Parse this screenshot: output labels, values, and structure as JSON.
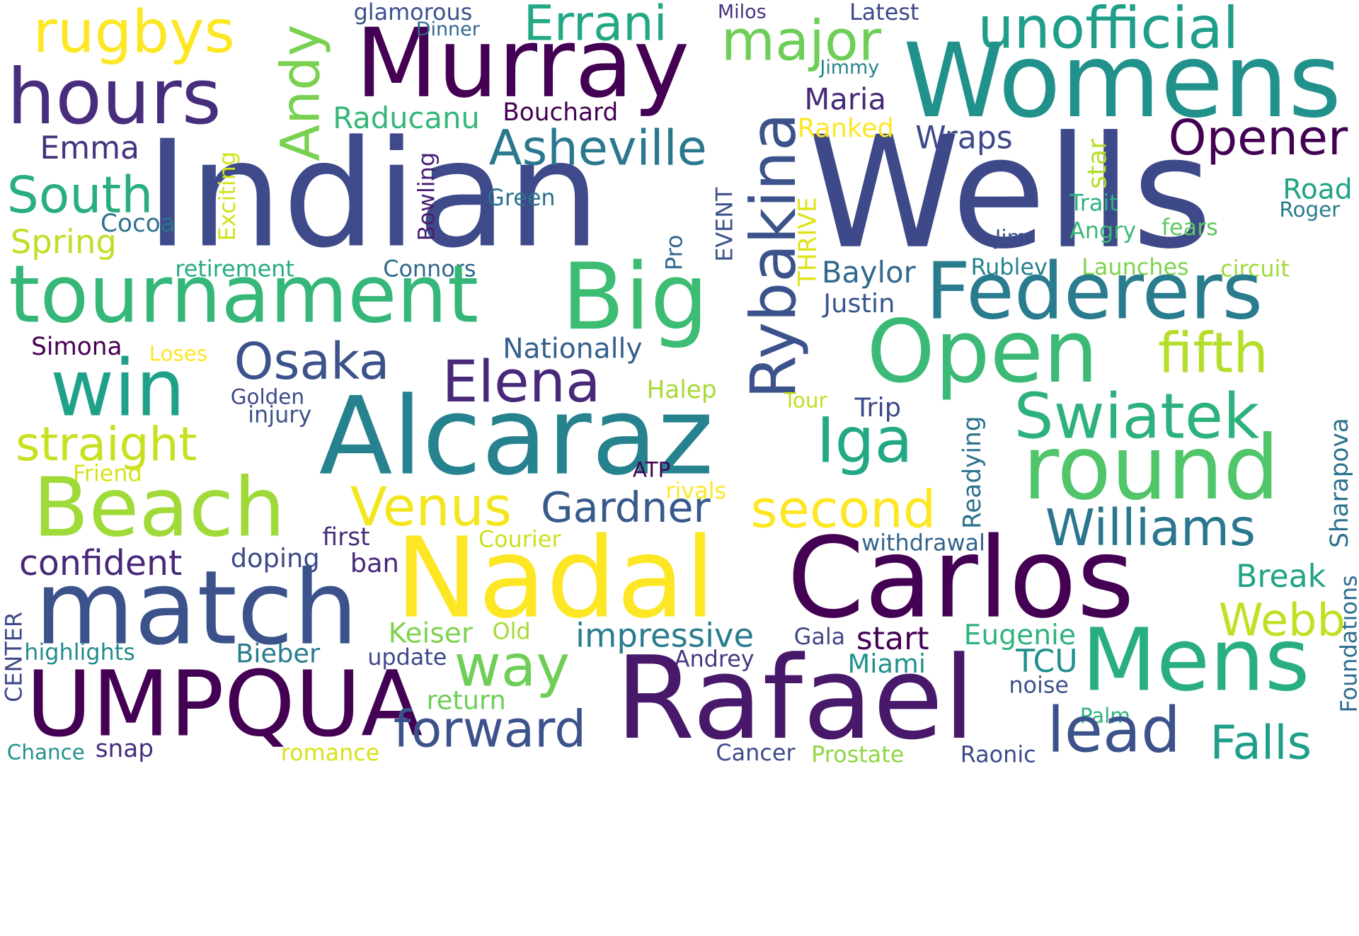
{
  "words": [
    "rugbys",
    "hours",
    "Andy",
    "Murray",
    "glamorous",
    "Dinner",
    "Errani",
    "Milos",
    "Latest",
    "unofficial",
    "major",
    "Womens",
    "Jimmy",
    "Raducanu",
    "Bouchard",
    "Maria",
    "Emma",
    "Indian",
    "Wells",
    "Exciting",
    "Bowling",
    "Asheville",
    "Rybakina",
    "Ranked",
    "Wraps",
    "Opener",
    "South",
    "star",
    "Road",
    "Green",
    "EVENT",
    "Trait",
    "Roger",
    "Cocoa",
    "Spring",
    "THRIVE",
    "Angry",
    "fears",
    "Pro",
    "Jim",
    "retirement",
    "Connors",
    "tournament",
    "Big",
    "Baylor",
    "Rublev",
    "Launches",
    "circuit",
    "Federers",
    "Justin",
    "Open",
    "Simona",
    "Loses",
    "Osaka",
    "Nationally",
    "fifth",
    "win",
    "Elena",
    "Golden",
    "Halep",
    "Tour",
    "Trip",
    "injury",
    "Alcaraz",
    "Iga",
    "Readying",
    "Swiatek",
    "straight",
    "Friend",
    "ATP",
    "round",
    "Sharapova",
    "Beach",
    "rivals",
    "Venus",
    "Gardner",
    "second",
    "Williams",
    "confident",
    "first",
    "Courier",
    "withdrawal",
    "doping",
    "ban",
    "Nadal",
    "Carlos",
    "Break",
    "match",
    "Foundations",
    "Webb",
    "Keiser",
    "Old",
    "impressive",
    "Gala",
    "start",
    "Eugenie",
    "CENTER",
    "highlights",
    "Bieber",
    "update",
    "way",
    "Andrey",
    "Miami",
    "TCU",
    "Mens",
    "UMPQUA",
    "noise",
    "Rafael",
    "return",
    "forward",
    "Palm",
    "lead",
    "Falls",
    "Chance",
    "snap",
    "romance",
    "Cancer",
    "Prostate",
    "Raonic"
  ]
}
